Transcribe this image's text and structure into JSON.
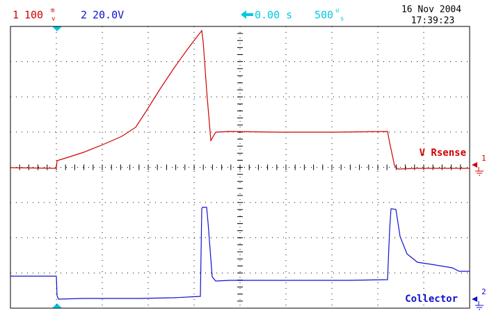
{
  "header": {
    "ch1": {
      "number": "1",
      "scale": "100",
      "unit_top": "m",
      "unit_bottom": "v"
    },
    "ch2": {
      "number": "2",
      "scale": "20.0V"
    },
    "trigger": {
      "position": "0.00 s"
    },
    "timebase": {
      "scale": "500",
      "unit_top": "u",
      "unit_bottom": "s"
    },
    "date": "16 Nov 2004",
    "time": "17:39:23"
  },
  "traces": [
    {
      "label": "V Rsense",
      "marker": "1"
    },
    {
      "label": "Collector",
      "marker": "2"
    }
  ]
}
